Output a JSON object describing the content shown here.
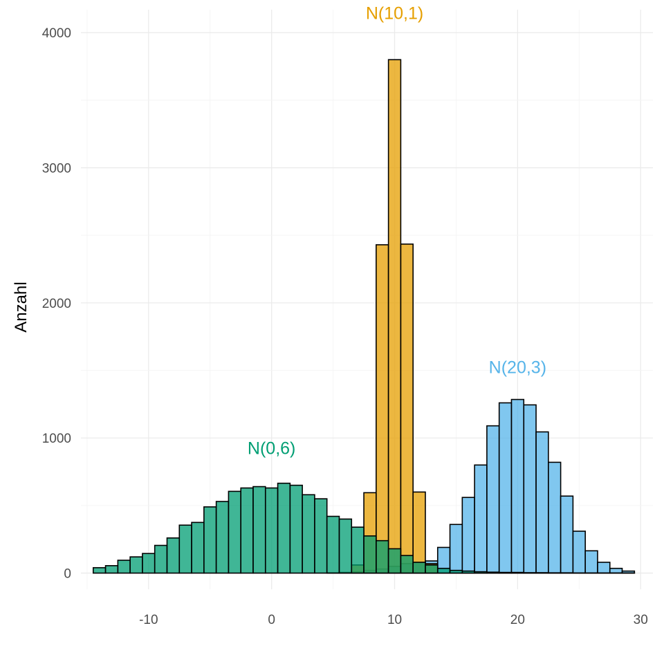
{
  "chart_data": {
    "type": "bar",
    "subtype": "overlaid-histogram",
    "title": "",
    "xlabel": "",
    "ylabel": "Anzahl",
    "xlim": [
      -15.5,
      31
    ],
    "ylim": [
      -120,
      4170
    ],
    "x_ticks": [
      -10,
      0,
      10,
      20,
      30
    ],
    "x_tick_labels": [
      "-10",
      "0",
      "10",
      "20",
      "30"
    ],
    "y_ticks": [
      0,
      1000,
      2000,
      3000,
      4000
    ],
    "y_tick_labels": [
      "0",
      "1000",
      "2000",
      "3000",
      "4000"
    ],
    "grid": true,
    "legend": "none",
    "bin_width": 1,
    "series": [
      {
        "name": "N(20,3)",
        "color": "#56B4E9",
        "bin_centers": [
          5,
          6,
          7,
          8,
          9,
          10,
          11,
          12,
          13,
          14,
          15,
          16,
          17,
          18,
          19,
          20,
          21,
          22,
          23,
          24,
          25,
          26,
          27,
          28,
          29
        ],
        "values": [
          2,
          5,
          10,
          20,
          30,
          50,
          70,
          80,
          90,
          190,
          360,
          560,
          800,
          1090,
          1260,
          1285,
          1245,
          1045,
          820,
          570,
          310,
          165,
          80,
          35,
          15
        ]
      },
      {
        "name": "N(10,1)",
        "color": "#E69F00",
        "bin_centers": [
          7,
          8,
          9,
          10,
          11,
          12,
          13
        ],
        "values": [
          60,
          595,
          2430,
          3800,
          2435,
          600,
          70
        ]
      },
      {
        "name": "N(0,6)",
        "color": "#009E73",
        "bin_centers": [
          -14,
          -13,
          -12,
          -11,
          -10,
          -9,
          -8,
          -7,
          -6,
          -5,
          -4,
          -3,
          -2,
          -1,
          0,
          1,
          2,
          3,
          4,
          5,
          6,
          7,
          8,
          9,
          10,
          11,
          12,
          13,
          14,
          15,
          16,
          17,
          18,
          19,
          20,
          21,
          22,
          23,
          24,
          25,
          26,
          27,
          28,
          29
        ],
        "values": [
          40,
          55,
          95,
          120,
          145,
          205,
          260,
          355,
          375,
          490,
          530,
          605,
          630,
          640,
          630,
          665,
          650,
          580,
          550,
          420,
          400,
          340,
          275,
          240,
          180,
          130,
          80,
          60,
          35,
          20,
          15,
          10,
          7,
          5,
          5,
          3,
          3,
          2,
          2,
          1,
          1,
          1,
          1,
          1
        ]
      }
    ],
    "annotations": [
      {
        "text": "N(0,6)",
        "x": 0,
        "y": 880,
        "color": "#009E73"
      },
      {
        "text": "N(10,1)",
        "x": 10,
        "y": 4100,
        "color": "#E69F00"
      },
      {
        "text": "N(20,3)",
        "x": 20,
        "y": 1480,
        "color": "#56B4E9"
      }
    ]
  }
}
